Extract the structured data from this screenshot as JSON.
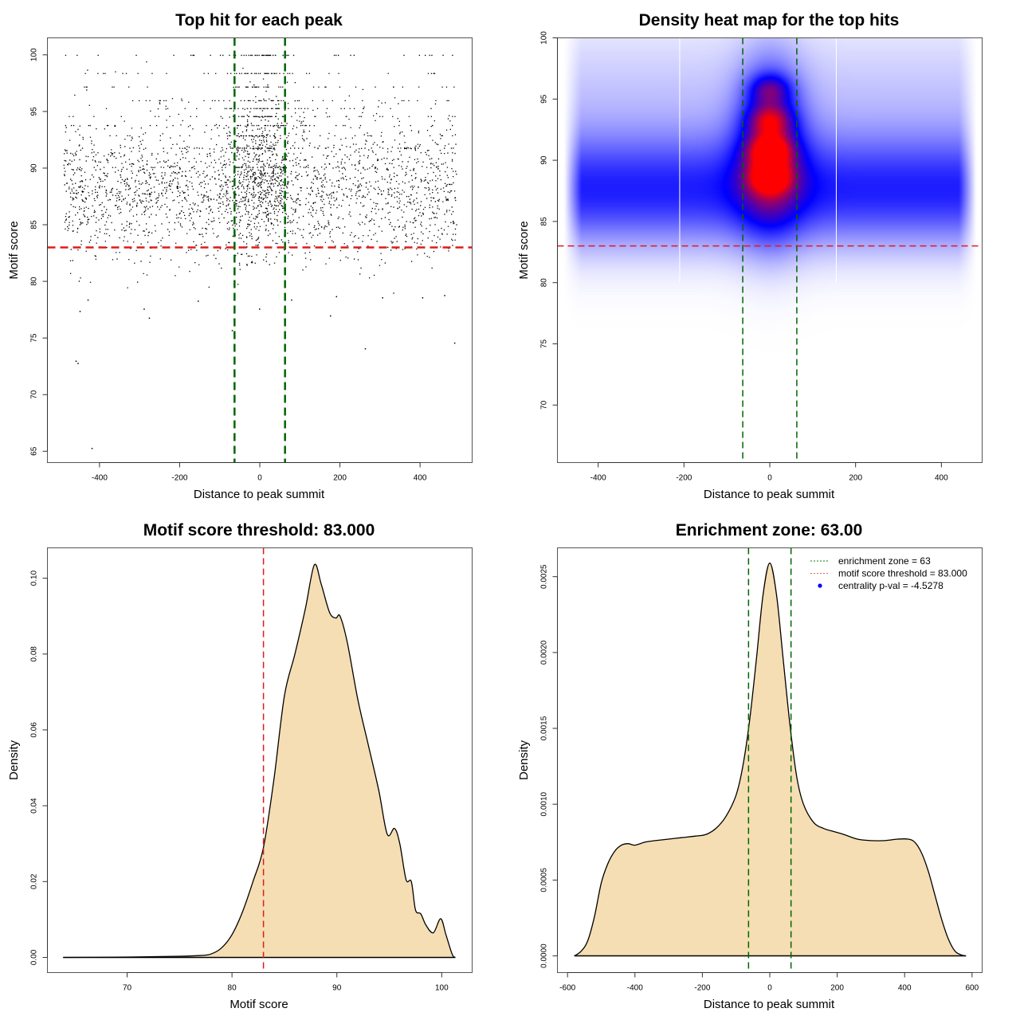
{
  "chart_data": [
    {
      "type": "scatter",
      "title": "Top hit for each peak",
      "xlabel": "Distance to peak summit",
      "ylabel": "Motif score",
      "xlim": [
        -530,
        530
      ],
      "ylim": [
        64,
        101.5
      ],
      "xticks": [
        -400,
        -200,
        0,
        200,
        400
      ],
      "yticks": [
        65,
        70,
        75,
        80,
        85,
        90,
        95,
        100
      ],
      "grid": false,
      "point_color": "#000000",
      "bulk": {
        "x_range": [
          -490,
          490
        ],
        "central_zone": [
          -63,
          63
        ],
        "score_mode": 88,
        "score_range": [
          79,
          100
        ],
        "discrete_score_levels": [
          100,
          98.4,
          97.2,
          96.0,
          95.3,
          94.6,
          93.8,
          92.9,
          91.8,
          90.1
        ],
        "approx_count": 16000
      },
      "outliers": [
        {
          "x": -460,
          "y": 73.0
        },
        {
          "x": -455,
          "y": 72.8
        },
        {
          "x": -420,
          "y": 65.3
        },
        {
          "x": -450,
          "y": 77.4
        },
        {
          "x": -430,
          "y": 78.4
        },
        {
          "x": -290,
          "y": 77.6
        },
        {
          "x": -277,
          "y": 76.8
        },
        {
          "x": -155,
          "y": 78.3
        },
        {
          "x": -70,
          "y": 75.7
        },
        {
          "x": -2,
          "y": 77.6
        },
        {
          "x": 175,
          "y": 77.0
        },
        {
          "x": 262,
          "y": 74.1
        },
        {
          "x": 485,
          "y": 74.6
        },
        {
          "x": 305,
          "y": 78.6
        },
        {
          "x": 405,
          "y": 78.6
        },
        {
          "x": 190,
          "y": 78.7
        },
        {
          "x": 460,
          "y": 78.8
        },
        {
          "x": 78,
          "y": 78.4
        }
      ],
      "hlines": [
        {
          "y": 83.0,
          "color": "#dd1c1c",
          "style": "dashed"
        }
      ],
      "vlines": [
        {
          "x": -63,
          "color": "#006400",
          "style": "dashed"
        },
        {
          "x": 63,
          "color": "#006400",
          "style": "dashed"
        }
      ]
    },
    {
      "type": "heatmap",
      "title": "Density heat map for the top hits",
      "xlabel": "Distance to peak summit",
      "ylabel": "Motif score",
      "xlim": [
        -495,
        495
      ],
      "ylim": [
        65.3,
        100
      ],
      "xticks": [
        -400,
        -200,
        0,
        200,
        400
      ],
      "yticks": [
        70,
        75,
        80,
        85,
        90,
        95,
        100
      ],
      "color_scale": [
        "#ffffff",
        "#0000ff",
        "#ff0000"
      ],
      "hotspots": [
        {
          "x": 0,
          "y": 90.8,
          "intensity": 1.0
        },
        {
          "x": 0,
          "y": 88.6,
          "intensity": 0.95
        },
        {
          "x": 0,
          "y": 93.3,
          "intensity": 0.7
        },
        {
          "x": 0,
          "y": 95.8,
          "intensity": 0.6
        }
      ],
      "background_band": {
        "y_center": 87.5,
        "y_spread": 4.5,
        "intensity": 0.42
      },
      "column_breaks": [
        -210,
        155
      ],
      "hlines": [
        {
          "y": 83.0,
          "color": "#dd1c1c",
          "style": "dashed"
        }
      ],
      "vlines": [
        {
          "x": -63,
          "color": "#006400",
          "style": "dashed"
        },
        {
          "x": 63,
          "color": "#006400",
          "style": "dashed"
        }
      ]
    },
    {
      "type": "area",
      "title": "Motif score threshold: 83.000",
      "xlabel": "Motif score",
      "ylabel": "Density",
      "xlim": [
        62.4,
        102.9
      ],
      "ylim": [
        -0.004,
        0.108
      ],
      "xticks": [
        70,
        80,
        90,
        100
      ],
      "yticks": [
        0.0,
        0.02,
        0.04,
        0.06,
        0.08,
        0.1
      ],
      "ytick_labels": [
        "0.00",
        "0.02",
        "0.04",
        "0.06",
        "0.08",
        "0.10"
      ],
      "fill_color": "#f5deb3",
      "x": [
        63.9,
        70,
        75,
        77,
        78,
        79,
        80,
        81,
        82,
        83,
        84,
        85,
        86,
        87,
        87.85,
        88.5,
        89.3,
        89.9,
        90.3,
        91,
        92,
        93,
        94,
        94.8,
        95.5,
        96,
        96.6,
        97.1,
        97.5,
        98,
        98.5,
        99.2,
        99.9,
        100.4,
        101,
        101.3
      ],
      "y": [
        0.0,
        0.0001,
        0.0003,
        0.0005,
        0.0009,
        0.0025,
        0.006,
        0.012,
        0.02,
        0.029,
        0.047,
        0.069,
        0.08,
        0.092,
        0.1035,
        0.0985,
        0.091,
        0.0895,
        0.09,
        0.083,
        0.068,
        0.056,
        0.044,
        0.0325,
        0.034,
        0.03,
        0.0205,
        0.02,
        0.0125,
        0.0115,
        0.0085,
        0.0065,
        0.0102,
        0.006,
        0.0008,
        0.0
      ],
      "vlines": [
        {
          "x": 83.0,
          "color": "#dd1c1c",
          "style": "dashed"
        }
      ]
    },
    {
      "type": "area",
      "title": "Enrichment zone: 63.00",
      "xlabel": "Distance to peak summit",
      "ylabel": "Density",
      "xlim": [
        -630,
        630
      ],
      "ylim": [
        -0.00011,
        0.00269
      ],
      "xticks": [
        -600,
        -400,
        -200,
        0,
        200,
        400,
        600
      ],
      "yticks": [
        0.0,
        0.0005,
        0.001,
        0.0015,
        0.002,
        0.0025
      ],
      "ytick_labels": [
        "0.0000",
        "0.0005",
        "0.0010",
        "0.0015",
        "0.0020",
        "0.0025"
      ],
      "fill_color": "#f5deb3",
      "x": [
        -580,
        -560,
        -540,
        -520,
        -500,
        -480,
        -460,
        -440,
        -420,
        -400,
        -370,
        -340,
        -300,
        -260,
        -220,
        -190,
        -160,
        -130,
        -100,
        -80,
        -60,
        -40,
        -20,
        0,
        20,
        40,
        60,
        80,
        100,
        130,
        160,
        190,
        220,
        260,
        300,
        340,
        380,
        410,
        430,
        450,
        470,
        490,
        510,
        530,
        550,
        570,
        582
      ],
      "y": [
        0.0,
        3e-05,
        0.0001,
        0.00026,
        0.00048,
        0.00061,
        0.00069,
        0.00073,
        0.00074,
        0.00073,
        0.00075,
        0.00076,
        0.00077,
        0.00078,
        0.00079,
        0.0008,
        0.00084,
        0.00092,
        0.00106,
        0.00125,
        0.00155,
        0.00195,
        0.00238,
        0.00259,
        0.00238,
        0.00195,
        0.00152,
        0.00118,
        0.001,
        0.00088,
        0.00084,
        0.00082,
        0.0008,
        0.00077,
        0.00076,
        0.00076,
        0.00077,
        0.00077,
        0.00075,
        0.00068,
        0.00056,
        0.0004,
        0.00024,
        0.00011,
        3e-05,
        5e-06,
        0.0
      ],
      "vlines": [
        {
          "x": -63,
          "color": "#006400",
          "style": "dashed"
        },
        {
          "x": 63,
          "color": "#006400",
          "style": "dashed"
        }
      ],
      "legend": {
        "placement": "top-right",
        "entries": [
          {
            "label": "enrichment zone = 63",
            "kind": "dotted-line",
            "color": "#008000"
          },
          {
            "label": "motif score threshold = 83.000",
            "kind": "dotted-line",
            "color": "#e06060"
          },
          {
            "label": "centrality p-val = -4.5278",
            "kind": "point",
            "color": "#0000ff"
          }
        ]
      }
    }
  ]
}
